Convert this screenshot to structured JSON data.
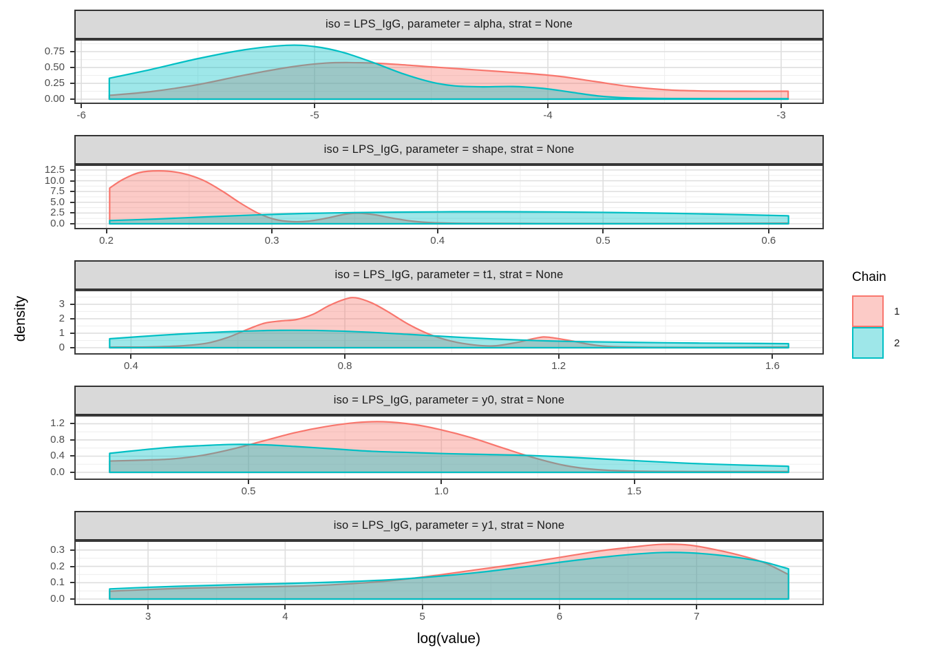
{
  "figure": {
    "x_axis_title": "log(value)",
    "y_axis_title": "density"
  },
  "legend": {
    "title": "Chain",
    "items": [
      {
        "label": "1",
        "color": "#F8766D"
      },
      {
        "label": "2",
        "color": "#00BFC4"
      }
    ]
  },
  "style": {
    "fill_alpha": 0.38,
    "strip_bg": "#D9D9D9",
    "panel_border": "#3A3A3A",
    "grid_major": "#DEDEDE",
    "grid_minor": "#EFEFEF",
    "tick_color": "#333333",
    "tick_label_color": "#4D4D4D"
  },
  "chart_data": [
    {
      "type": "area",
      "subtype": "density",
      "title": "iso = LPS_IgG, parameter = alpha, strat = None",
      "xlabel": "log(value)",
      "ylabel": "density",
      "x_domain": [
        -6.024,
        -2.823
      ],
      "y_domain": [
        -0.054,
        0.924
      ],
      "x_tick_values": [
        -6,
        -5,
        -4,
        -3
      ],
      "x_tick_labels": [
        "-6",
        "-5",
        "-4",
        "-3"
      ],
      "y_tick_values": [
        0,
        0.25,
        0.5,
        0.75
      ],
      "y_tick_labels": [
        "0.00",
        "0.25",
        "0.50",
        "0.75"
      ],
      "series": [
        {
          "name": "1",
          "color": "#F8766D",
          "points": [
            [
              -5.88,
              0.06
            ],
            [
              -5.7,
              0.12
            ],
            [
              -5.5,
              0.23
            ],
            [
              -5.3,
              0.38
            ],
            [
              -5.1,
              0.51
            ],
            [
              -4.95,
              0.57
            ],
            [
              -4.8,
              0.575
            ],
            [
              -4.65,
              0.55
            ],
            [
              -4.5,
              0.51
            ],
            [
              -4.3,
              0.46
            ],
            [
              -4.1,
              0.41
            ],
            [
              -3.95,
              0.36
            ],
            [
              -3.8,
              0.28
            ],
            [
              -3.65,
              0.2
            ],
            [
              -3.5,
              0.15
            ],
            [
              -3.35,
              0.13
            ],
            [
              -3.15,
              0.125
            ],
            [
              -2.97,
              0.125
            ]
          ]
        },
        {
          "name": "2",
          "color": "#00BFC4",
          "points": [
            [
              -5.88,
              0.33
            ],
            [
              -5.7,
              0.47
            ],
            [
              -5.5,
              0.64
            ],
            [
              -5.3,
              0.78
            ],
            [
              -5.12,
              0.85
            ],
            [
              -5.0,
              0.83
            ],
            [
              -4.88,
              0.74
            ],
            [
              -4.75,
              0.58
            ],
            [
              -4.62,
              0.4
            ],
            [
              -4.5,
              0.27
            ],
            [
              -4.4,
              0.21
            ],
            [
              -4.28,
              0.195
            ],
            [
              -4.15,
              0.2
            ],
            [
              -4.02,
              0.17
            ],
            [
              -3.9,
              0.11
            ],
            [
              -3.78,
              0.05
            ],
            [
              -3.65,
              0.02
            ],
            [
              -3.45,
              0.01
            ],
            [
              -3.2,
              0.008
            ],
            [
              -2.97,
              0.008
            ]
          ]
        }
      ]
    },
    {
      "type": "area",
      "subtype": "density",
      "title": "iso = LPS_IgG, parameter = shape, strat = None",
      "xlabel": "log(value)",
      "ylabel": "density",
      "x_domain": [
        0.1815,
        0.6325
      ],
      "y_domain": [
        -0.96,
        13.44
      ],
      "x_tick_values": [
        0.2,
        0.3,
        0.4,
        0.5,
        0.6
      ],
      "x_tick_labels": [
        "0.2",
        "0.3",
        "0.4",
        "0.5",
        "0.6"
      ],
      "y_tick_values": [
        0,
        2.5,
        5,
        7.5,
        10,
        12.5
      ],
      "y_tick_labels": [
        "0.0",
        "2.5",
        "5.0",
        "7.5",
        "10.0",
        "12.5"
      ],
      "series": [
        {
          "name": "1",
          "color": "#F8766D",
          "points": [
            [
              0.202,
              8.3
            ],
            [
              0.21,
              10.3
            ],
            [
              0.22,
              11.9
            ],
            [
              0.232,
              12.3
            ],
            [
              0.245,
              11.8
            ],
            [
              0.258,
              10.2
            ],
            [
              0.27,
              7.6
            ],
            [
              0.281,
              4.8
            ],
            [
              0.292,
              2.4
            ],
            [
              0.302,
              1.0
            ],
            [
              0.312,
              0.5
            ],
            [
              0.322,
              0.6
            ],
            [
              0.333,
              1.3
            ],
            [
              0.344,
              2.2
            ],
            [
              0.352,
              2.45
            ],
            [
              0.362,
              2.1
            ],
            [
              0.373,
              1.3
            ],
            [
              0.385,
              0.6
            ],
            [
              0.398,
              0.25
            ],
            [
              0.42,
              0.1
            ],
            [
              0.46,
              0.07
            ],
            [
              0.52,
              0.07
            ],
            [
              0.57,
              0.1
            ],
            [
              0.612,
              0.15
            ]
          ]
        },
        {
          "name": "2",
          "color": "#00BFC4",
          "points": [
            [
              0.202,
              0.75
            ],
            [
              0.23,
              1.1
            ],
            [
              0.26,
              1.6
            ],
            [
              0.29,
              2.05
            ],
            [
              0.32,
              2.4
            ],
            [
              0.35,
              2.6
            ],
            [
              0.38,
              2.72
            ],
            [
              0.41,
              2.8
            ],
            [
              0.44,
              2.8
            ],
            [
              0.47,
              2.75
            ],
            [
              0.5,
              2.65
            ],
            [
              0.53,
              2.5
            ],
            [
              0.56,
              2.3
            ],
            [
              0.585,
              2.1
            ],
            [
              0.612,
              1.85
            ]
          ]
        }
      ]
    },
    {
      "type": "area",
      "subtype": "density",
      "title": "iso = LPS_IgG, parameter = t1, strat = None",
      "xlabel": "log(value)",
      "ylabel": "density",
      "x_domain": [
        0.2965,
        1.6935
      ],
      "y_domain": [
        -0.38,
        3.9
      ],
      "x_tick_values": [
        0.4,
        0.8,
        1.2,
        1.6
      ],
      "x_tick_labels": [
        "0.4",
        "0.8",
        "1.2",
        "1.6"
      ],
      "y_tick_values": [
        0,
        1,
        2,
        3
      ],
      "y_tick_labels": [
        "0",
        "1",
        "2",
        "3"
      ],
      "series": [
        {
          "name": "1",
          "color": "#F8766D",
          "points": [
            [
              0.36,
              0.04
            ],
            [
              0.43,
              0.05
            ],
            [
              0.49,
              0.12
            ],
            [
              0.54,
              0.3
            ],
            [
              0.58,
              0.7
            ],
            [
              0.62,
              1.3
            ],
            [
              0.65,
              1.7
            ],
            [
              0.68,
              1.85
            ],
            [
              0.71,
              1.95
            ],
            [
              0.74,
              2.3
            ],
            [
              0.77,
              2.9
            ],
            [
              0.8,
              3.35
            ],
            [
              0.82,
              3.45
            ],
            [
              0.85,
              3.1
            ],
            [
              0.88,
              2.5
            ],
            [
              0.92,
              1.6
            ],
            [
              0.96,
              0.9
            ],
            [
              1.0,
              0.45
            ],
            [
              1.04,
              0.2
            ],
            [
              1.08,
              0.13
            ],
            [
              1.12,
              0.35
            ],
            [
              1.16,
              0.68
            ],
            [
              1.18,
              0.73
            ],
            [
              1.22,
              0.5
            ],
            [
              1.26,
              0.22
            ],
            [
              1.3,
              0.08
            ],
            [
              1.4,
              0.03
            ],
            [
              1.52,
              0.03
            ],
            [
              1.63,
              0.05
            ]
          ]
        },
        {
          "name": "2",
          "color": "#00BFC4",
          "points": [
            [
              0.36,
              0.62
            ],
            [
              0.45,
              0.85
            ],
            [
              0.52,
              1.0
            ],
            [
              0.6,
              1.13
            ],
            [
              0.68,
              1.2
            ],
            [
              0.76,
              1.18
            ],
            [
              0.84,
              1.08
            ],
            [
              0.92,
              0.92
            ],
            [
              1.0,
              0.75
            ],
            [
              1.08,
              0.6
            ],
            [
              1.16,
              0.49
            ],
            [
              1.24,
              0.42
            ],
            [
              1.34,
              0.37
            ],
            [
              1.46,
              0.32
            ],
            [
              1.56,
              0.3
            ],
            [
              1.63,
              0.28
            ]
          ]
        }
      ]
    },
    {
      "type": "area",
      "subtype": "density",
      "title": "iso = LPS_IgG, parameter = y0, strat = None",
      "xlabel": "log(value)",
      "ylabel": "density",
      "x_domain": [
        0.052,
        1.988
      ],
      "y_domain": [
        -0.153,
        1.378
      ],
      "x_tick_values": [
        0.5,
        1.0,
        1.5
      ],
      "x_tick_labels": [
        "0.5",
        "1.0",
        "1.5"
      ],
      "y_tick_values": [
        0,
        0.4,
        0.8,
        1.2
      ],
      "y_tick_labels": [
        "0.0",
        "0.4",
        "0.8",
        "1.2"
      ],
      "series": [
        {
          "name": "1",
          "color": "#F8766D",
          "points": [
            [
              0.14,
              0.28
            ],
            [
              0.22,
              0.3
            ],
            [
              0.3,
              0.33
            ],
            [
              0.38,
              0.42
            ],
            [
              0.46,
              0.58
            ],
            [
              0.54,
              0.78
            ],
            [
              0.62,
              0.98
            ],
            [
              0.7,
              1.13
            ],
            [
              0.78,
              1.23
            ],
            [
              0.85,
              1.25
            ],
            [
              0.93,
              1.18
            ],
            [
              1.0,
              1.05
            ],
            [
              1.08,
              0.85
            ],
            [
              1.16,
              0.6
            ],
            [
              1.24,
              0.36
            ],
            [
              1.32,
              0.17
            ],
            [
              1.4,
              0.07
            ],
            [
              1.5,
              0.03
            ],
            [
              1.65,
              0.02
            ],
            [
              1.78,
              0.02
            ],
            [
              1.9,
              0.02
            ]
          ]
        },
        {
          "name": "2",
          "color": "#00BFC4",
          "points": [
            [
              0.14,
              0.47
            ],
            [
              0.22,
              0.55
            ],
            [
              0.3,
              0.62
            ],
            [
              0.38,
              0.66
            ],
            [
              0.46,
              0.69
            ],
            [
              0.54,
              0.68
            ],
            [
              0.62,
              0.64
            ],
            [
              0.72,
              0.58
            ],
            [
              0.82,
              0.52
            ],
            [
              0.92,
              0.49
            ],
            [
              1.02,
              0.46
            ],
            [
              1.12,
              0.44
            ],
            [
              1.22,
              0.42
            ],
            [
              1.32,
              0.38
            ],
            [
              1.42,
              0.33
            ],
            [
              1.52,
              0.28
            ],
            [
              1.65,
              0.22
            ],
            [
              1.78,
              0.18
            ],
            [
              1.9,
              0.15
            ]
          ]
        }
      ]
    },
    {
      "type": "area",
      "subtype": "density",
      "title": "iso = LPS_IgG, parameter = y1, strat = None",
      "xlabel": "log(value)",
      "ylabel": "density",
      "x_domain": [
        2.4725,
        7.9175
      ],
      "y_domain": [
        -0.0295,
        0.35
      ],
      "x_tick_values": [
        3,
        4,
        5,
        6,
        7
      ],
      "x_tick_labels": [
        "3",
        "4",
        "5",
        "6",
        "7"
      ],
      "y_tick_values": [
        0,
        0.1,
        0.2,
        0.3
      ],
      "y_tick_labels": [
        "0.0",
        "0.1",
        "0.2",
        "0.3"
      ],
      "series": [
        {
          "name": "1",
          "color": "#F8766D",
          "points": [
            [
              2.72,
              0.048
            ],
            [
              3.0,
              0.058
            ],
            [
              3.3,
              0.067
            ],
            [
              3.6,
              0.072
            ],
            [
              3.9,
              0.076
            ],
            [
              4.2,
              0.082
            ],
            [
              4.5,
              0.095
            ],
            [
              4.8,
              0.115
            ],
            [
              5.1,
              0.145
            ],
            [
              5.4,
              0.18
            ],
            [
              5.7,
              0.215
            ],
            [
              6.0,
              0.255
            ],
            [
              6.3,
              0.295
            ],
            [
              6.55,
              0.32
            ],
            [
              6.75,
              0.335
            ],
            [
              6.95,
              0.33
            ],
            [
              7.15,
              0.3
            ],
            [
              7.35,
              0.26
            ],
            [
              7.5,
              0.22
            ],
            [
              7.67,
              0.15
            ]
          ]
        },
        {
          "name": "2",
          "color": "#00BFC4",
          "points": [
            [
              2.72,
              0.062
            ],
            [
              3.0,
              0.072
            ],
            [
              3.3,
              0.08
            ],
            [
              3.6,
              0.087
            ],
            [
              3.9,
              0.093
            ],
            [
              4.2,
              0.1
            ],
            [
              4.5,
              0.108
            ],
            [
              4.8,
              0.12
            ],
            [
              5.1,
              0.138
            ],
            [
              5.4,
              0.162
            ],
            [
              5.7,
              0.192
            ],
            [
              6.0,
              0.225
            ],
            [
              6.3,
              0.255
            ],
            [
              6.55,
              0.275
            ],
            [
              6.75,
              0.285
            ],
            [
              6.95,
              0.283
            ],
            [
              7.15,
              0.27
            ],
            [
              7.35,
              0.248
            ],
            [
              7.5,
              0.225
            ],
            [
              7.67,
              0.185
            ]
          ]
        }
      ]
    }
  ]
}
